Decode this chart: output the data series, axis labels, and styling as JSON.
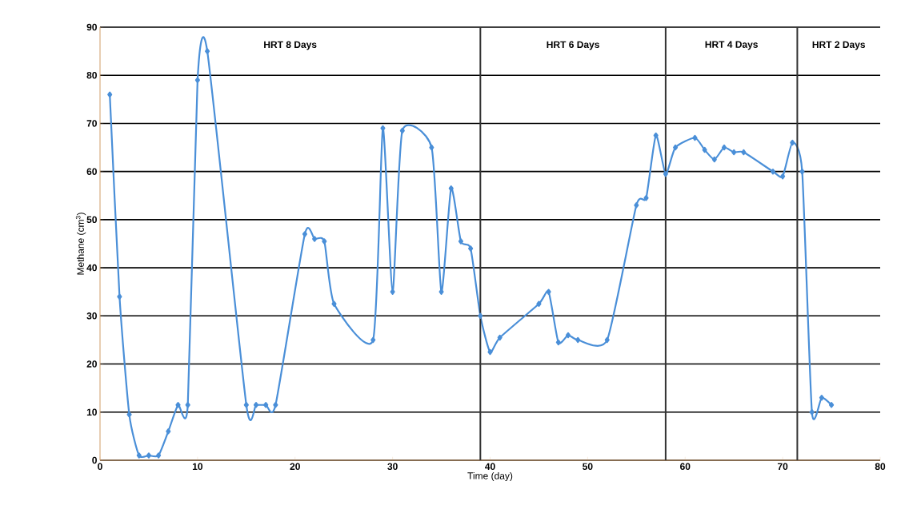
{
  "chart_data": {
    "type": "line",
    "xlabel": "Time (day)",
    "ylabel": "Methane (cm$^{3}$)",
    "x": [
      1,
      2,
      3,
      4,
      5,
      6,
      7,
      8,
      9,
      10,
      11,
      15,
      16,
      17,
      18,
      21,
      22,
      23,
      24,
      28,
      29,
      30,
      31,
      34,
      35,
      36,
      37,
      38,
      39,
      40,
      41,
      45,
      46,
      47,
      48,
      49,
      52,
      55,
      56,
      57,
      58,
      59,
      61,
      62,
      63,
      64,
      65,
      66,
      69,
      70,
      71,
      72,
      73,
      74,
      75
    ],
    "series": [
      {
        "color": "#4a8fd8",
        "values": [
          76,
          34,
          9.5,
          1,
          1,
          1,
          6,
          11.5,
          11.5,
          79,
          85,
          11.5,
          11.5,
          11.5,
          11.5,
          47,
          46,
          45.5,
          32.5,
          25,
          69,
          35,
          68.5,
          65,
          35,
          56.5,
          45.5,
          44,
          30,
          22.5,
          25.5,
          32.5,
          35,
          24.5,
          26,
          25,
          25,
          53,
          54.5,
          67.5,
          59.5,
          65,
          67,
          64.5,
          62.5,
          65,
          64,
          64,
          60,
          59,
          66,
          60,
          10,
          13,
          11.5
        ]
      }
    ],
    "xlim": [
      0,
      80
    ],
    "xticks": [
      0,
      10,
      20,
      30,
      40,
      50,
      60,
      70,
      80
    ],
    "ylim": [
      0,
      90
    ],
    "yticks": [
      0,
      10,
      20,
      30,
      40,
      50,
      60,
      70,
      80,
      90
    ],
    "grid": "y",
    "marker": "diamond",
    "line_style": "solid",
    "ref_lines": [
      {
        "axis": "x",
        "value": 39,
        "color": "#333333"
      },
      {
        "axis": "x",
        "value": 58,
        "color": "#333333"
      },
      {
        "axis": "x",
        "value": 71.5,
        "color": "#333333"
      }
    ],
    "annotations": [
      "HRT 8 Days",
      "HRT 6 Days",
      "HRT 4 Days",
      "HRT 2 Days"
    ]
  }
}
